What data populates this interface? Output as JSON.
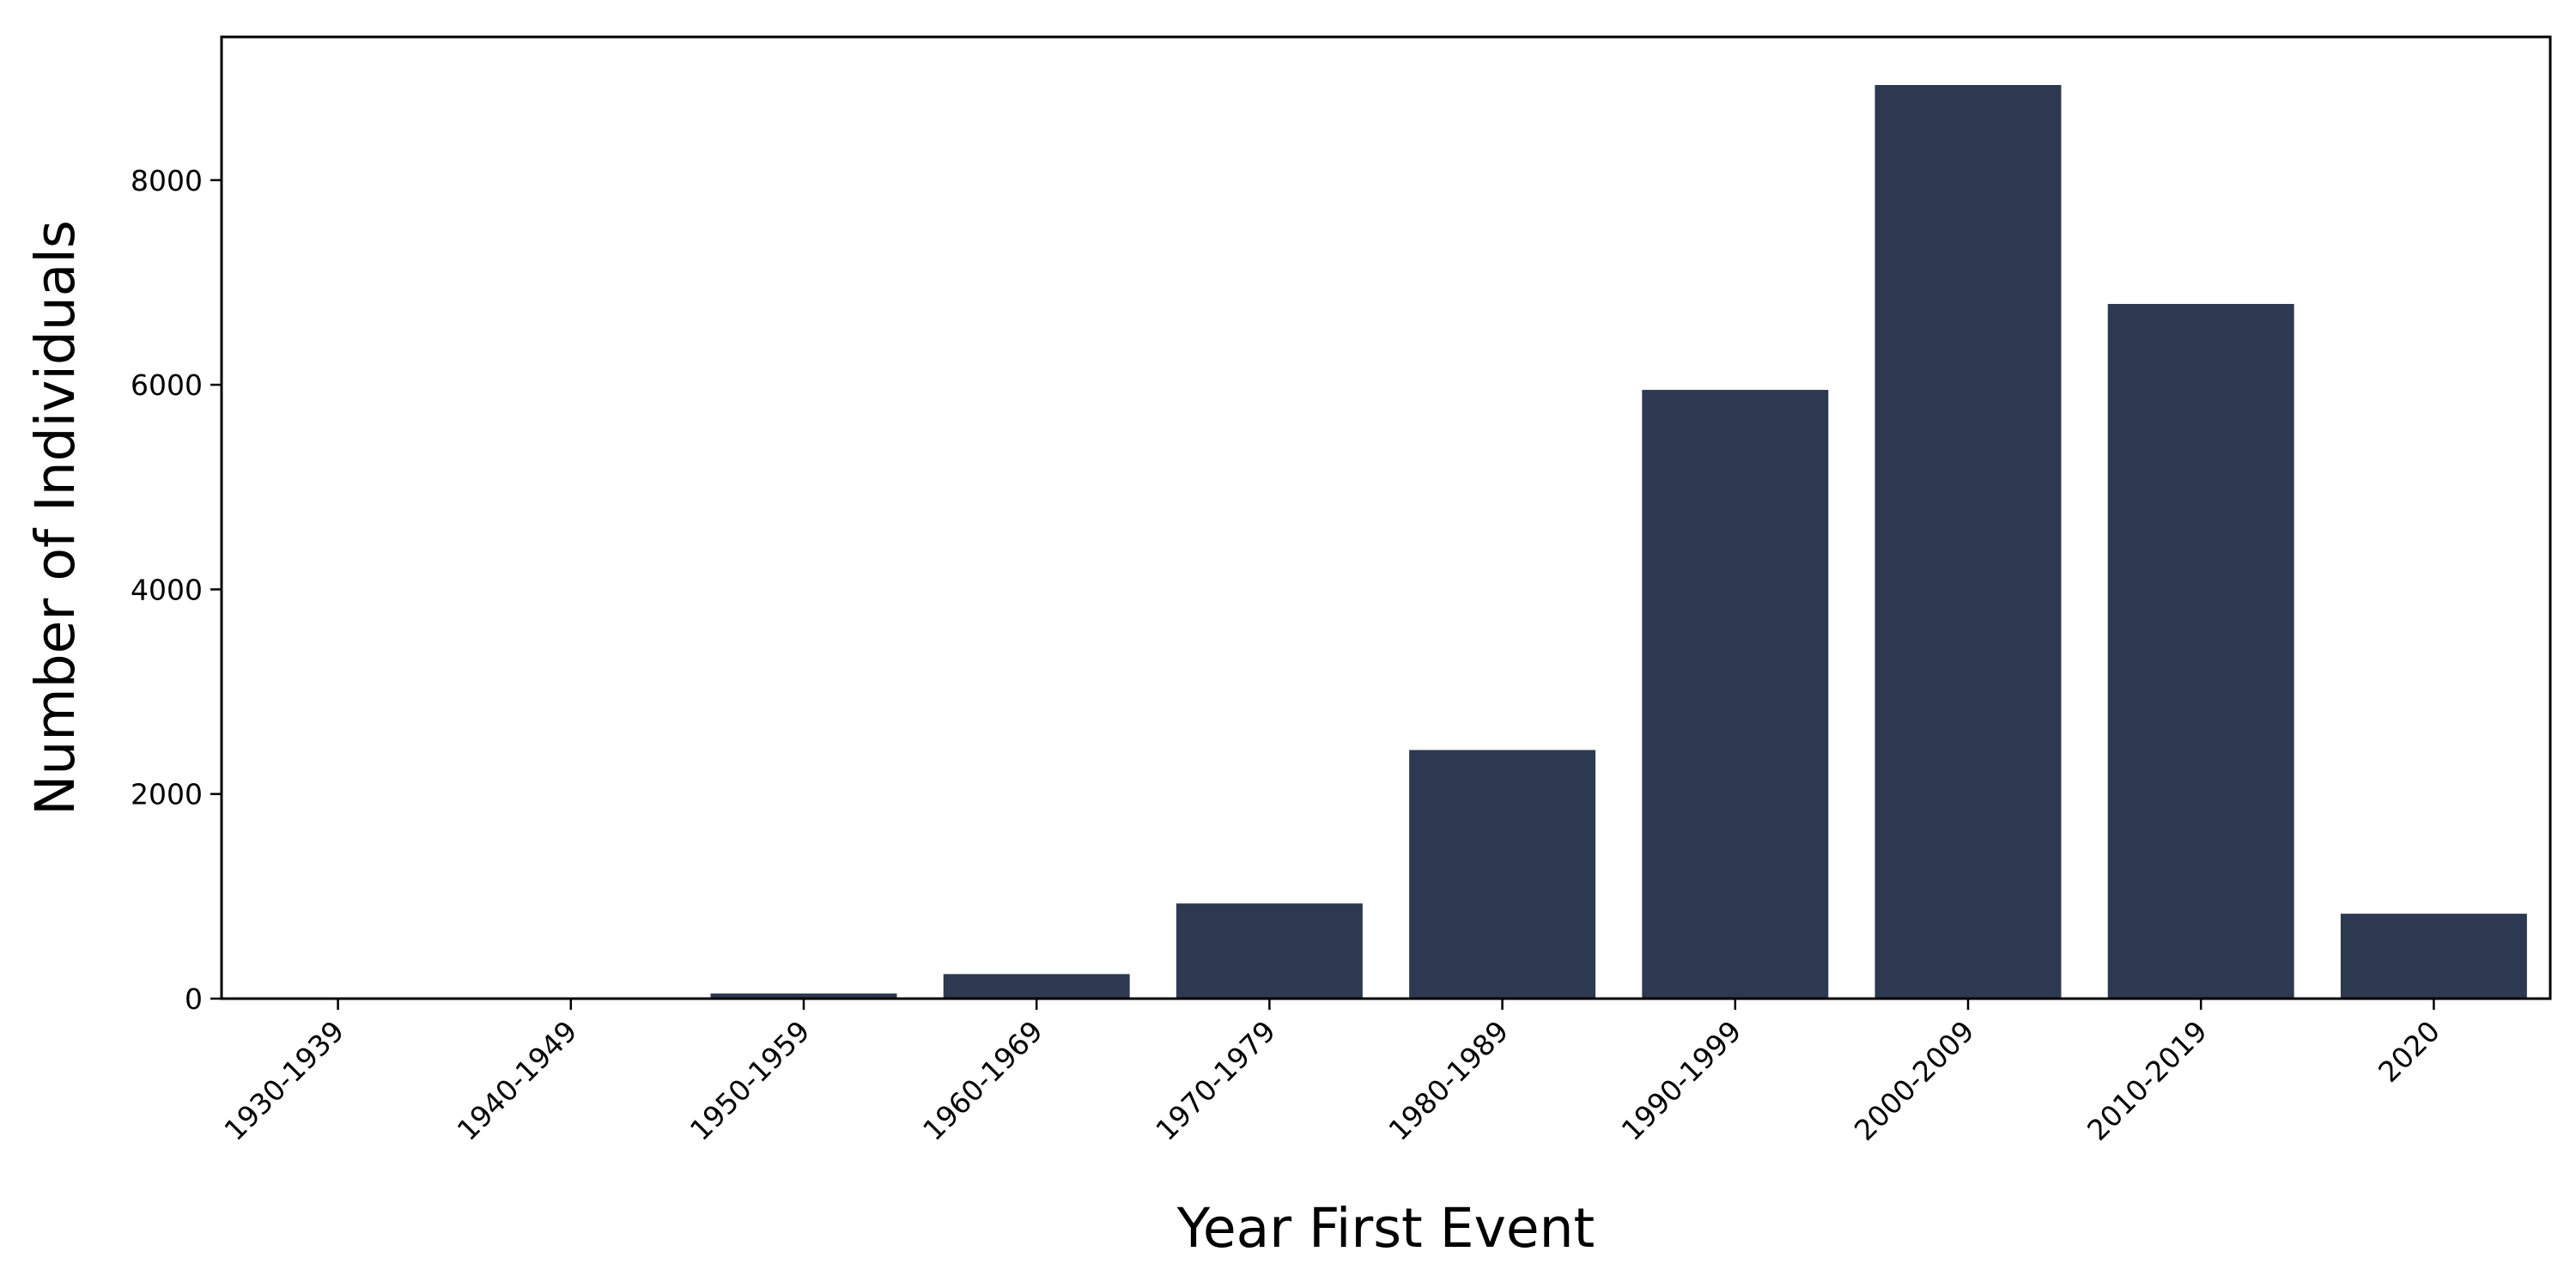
{
  "chart_data": {
    "type": "bar",
    "title": "",
    "xlabel": "Year First Event",
    "ylabel": "Number of Individuals",
    "categories": [
      "1930-1939",
      "1940-1949",
      "1950-1959",
      "1960-1969",
      "1970-1979",
      "1980-1989",
      "1990-1999",
      "2000-2009",
      "2010-2019",
      "2020"
    ],
    "series": [
      {
        "values": [
          3,
          5,
          50,
          240,
          930,
          2430,
          5950,
          8930,
          6790,
          830
        ]
      }
    ],
    "ylim": [
      0,
      9400
    ],
    "yticks": [
      0,
      2000,
      4000,
      6000,
      8000
    ],
    "ytick_labels": [
      "0",
      "2000",
      "4000",
      "6000",
      "8000"
    ],
    "bar_color": "#2d3950",
    "grid": false,
    "legend": "none"
  }
}
